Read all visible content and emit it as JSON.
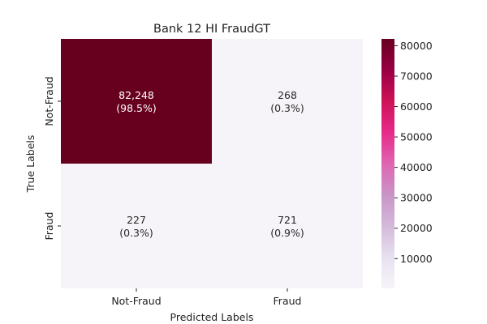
{
  "chart_data": {
    "type": "heatmap",
    "title": "Bank 12 HI FraudGT",
    "xlabel": "Predicted Labels",
    "ylabel": "True Labels",
    "x_categories": [
      "Not-Fraud",
      "Fraud"
    ],
    "y_categories": [
      "Not-Fraud",
      "Fraud"
    ],
    "values": [
      [
        82248,
        268
      ],
      [
        227,
        721
      ]
    ],
    "cell_labels": [
      [
        {
          "count": "82,248",
          "percent": "(98.5%)"
        },
        {
          "count": "268",
          "percent": "(0.3%)"
        }
      ],
      [
        {
          "count": "227",
          "percent": "(0.3%)"
        },
        {
          "count": "721",
          "percent": "(0.9%)"
        }
      ]
    ],
    "colorbar": {
      "range": [
        227,
        82248
      ],
      "ticks": [
        10000,
        20000,
        30000,
        40000,
        50000,
        60000,
        70000,
        80000
      ],
      "tick_labels": [
        "10000",
        "20000",
        "30000",
        "40000",
        "50000",
        "60000",
        "70000",
        "80000"
      ]
    },
    "colormap_colors": [
      "#f7f4f9",
      "#e7e1ef",
      "#d4b9da",
      "#c994c7",
      "#df65b0",
      "#e7298a",
      "#ce1256",
      "#980043",
      "#67001f"
    ]
  }
}
